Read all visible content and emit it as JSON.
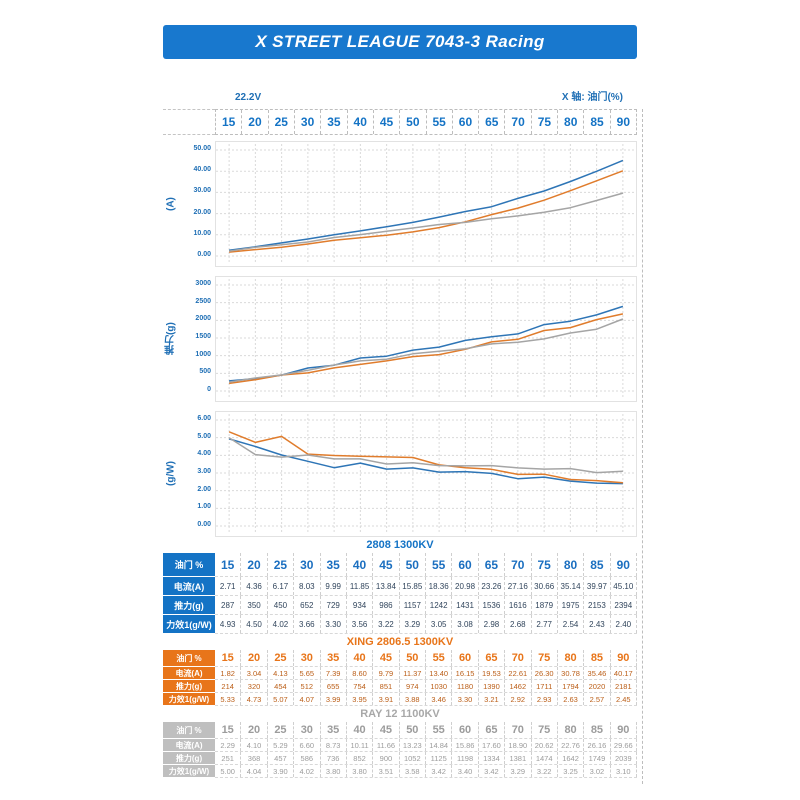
{
  "title": "X STREET LEAGUE 7043-3 Racing",
  "banner_color": "#1878ce",
  "meta": {
    "voltage": "22.2V",
    "x_axis_label": "X 轴: 油门(%)"
  },
  "throttle_header": {
    "values": [
      "15",
      "20",
      "25",
      "30",
      "35",
      "40",
      "45",
      "50",
      "55",
      "60",
      "65",
      "70",
      "75",
      "80",
      "85",
      "90"
    ]
  },
  "chart_data": [
    {
      "type": "line",
      "title": "",
      "xlabel": "油门(%)",
      "ylabel": "(A)",
      "x": [
        15,
        20,
        25,
        30,
        35,
        40,
        45,
        50,
        55,
        60,
        65,
        70,
        75,
        80,
        85,
        90
      ],
      "ylim": [
        0,
        50
      ],
      "yticks": [
        0,
        10,
        20,
        30,
        40,
        50
      ],
      "ytick_labels": [
        "0.00",
        "10.00",
        "20.00",
        "30.00",
        "40.00",
        "50.00"
      ],
      "grid": "dashed",
      "legend": "none",
      "series": [
        {
          "name": "2808 1300KV",
          "color": "#2e75b6",
          "values": [
            2.71,
            4.36,
            6.17,
            8.03,
            9.99,
            11.85,
            13.84,
            15.85,
            18.36,
            20.98,
            23.26,
            27.16,
            30.66,
            35.14,
            39.97,
            45.1
          ]
        },
        {
          "name": "XING 2806.5 1300KV",
          "color": "#e07c2c",
          "values": [
            1.82,
            3.04,
            4.13,
            5.65,
            7.39,
            8.6,
            9.79,
            11.37,
            13.4,
            16.15,
            19.53,
            22.61,
            26.3,
            30.78,
            35.46,
            40.17
          ]
        },
        {
          "name": "RAY 12 1100KV",
          "color": "#a5a5a5",
          "values": [
            2.29,
            4.1,
            5.29,
            6.6,
            8.73,
            10.11,
            11.66,
            13.23,
            14.84,
            15.86,
            17.6,
            18.9,
            20.62,
            22.76,
            26.16,
            29.66
          ]
        }
      ]
    },
    {
      "type": "line",
      "title": "",
      "xlabel": "油门(%)",
      "ylabel": "推力(g)",
      "x": [
        15,
        20,
        25,
        30,
        35,
        40,
        45,
        50,
        55,
        60,
        65,
        70,
        75,
        80,
        85,
        90
      ],
      "ylim": [
        0,
        3000
      ],
      "yticks": [
        0,
        500,
        1000,
        1500,
        2000,
        2500,
        3000
      ],
      "ytick_labels": [
        "0",
        "500",
        "1000",
        "1500",
        "2000",
        "2500",
        "3000"
      ],
      "grid": "dashed",
      "legend": "none",
      "series": [
        {
          "name": "2808 1300KV",
          "color": "#2e75b6",
          "values": [
            287,
            350,
            450,
            652,
            729,
            934,
            986,
            1157,
            1242,
            1431,
            1536,
            1616,
            1879,
            1975,
            2153,
            2394
          ]
        },
        {
          "name": "XING 2806.5 1300KV",
          "color": "#e07c2c",
          "values": [
            214,
            320,
            454,
            512,
            655,
            754,
            851,
            974,
            1030,
            1180,
            1390,
            1462,
            1711,
            1794,
            2020,
            2181
          ]
        },
        {
          "name": "RAY 12 1100KV",
          "color": "#a5a5a5",
          "values": [
            251,
            368,
            457,
            586,
            736,
            852,
            900,
            1052,
            1125,
            1198,
            1334,
            1381,
            1474,
            1642,
            1749,
            2039
          ]
        }
      ]
    },
    {
      "type": "line",
      "title": "",
      "xlabel": "油门(%)",
      "ylabel": "(g/W)",
      "x": [
        15,
        20,
        25,
        30,
        35,
        40,
        45,
        50,
        55,
        60,
        65,
        70,
        75,
        80,
        85,
        90
      ],
      "ylim": [
        0,
        6
      ],
      "yticks": [
        0,
        1,
        2,
        3,
        4,
        5,
        6
      ],
      "ytick_labels": [
        "0.00",
        "1.00",
        "2.00",
        "3.00",
        "4.00",
        "5.00",
        "6.00"
      ],
      "grid": "dashed",
      "legend": "none",
      "series": [
        {
          "name": "2808 1300KV",
          "color": "#2e75b6",
          "values": [
            4.93,
            4.5,
            4.02,
            3.66,
            3.3,
            3.56,
            3.22,
            3.29,
            3.05,
            3.08,
            2.98,
            2.68,
            2.77,
            2.54,
            2.43,
            2.4
          ]
        },
        {
          "name": "XING 2806.5 1300KV",
          "color": "#e07c2c",
          "values": [
            5.33,
            4.73,
            5.07,
            4.07,
            3.99,
            3.95,
            3.91,
            3.88,
            3.46,
            3.3,
            3.21,
            2.92,
            2.93,
            2.63,
            2.57,
            2.45
          ]
        },
        {
          "name": "RAY 12 1100KV",
          "color": "#a5a5a5",
          "values": [
            5.0,
            4.04,
            3.9,
            4.02,
            3.8,
            3.8,
            3.51,
            3.58,
            3.42,
            3.4,
            3.42,
            3.29,
            3.22,
            3.25,
            3.02,
            3.1
          ]
        }
      ]
    }
  ],
  "tables": [
    {
      "title": "2808 1300KV",
      "accent": "#1473c5",
      "title_color": "#1473c5",
      "throttle_color": "#1b6fc0",
      "value_color": "#31455c",
      "row_labels": [
        "油门 %",
        "电流(A)",
        "推力(g)",
        "力效1(g/W)"
      ],
      "rows": [
        [
          "15",
          "20",
          "25",
          "30",
          "35",
          "40",
          "45",
          "50",
          "55",
          "60",
          "65",
          "70",
          "75",
          "80",
          "85",
          "90"
        ],
        [
          "2.71",
          "4.36",
          "6.17",
          "8.03",
          "9.99",
          "11.85",
          "13.84",
          "15.85",
          "18.36",
          "20.98",
          "23.26",
          "27.16",
          "30.66",
          "35.14",
          "39.97",
          "45.10"
        ],
        [
          "287",
          "350",
          "450",
          "652",
          "729",
          "934",
          "986",
          "1157",
          "1242",
          "1431",
          "1536",
          "1616",
          "1879",
          "1975",
          "2153",
          "2394"
        ],
        [
          "4.93",
          "4.50",
          "4.02",
          "3.66",
          "3.30",
          "3.56",
          "3.22",
          "3.29",
          "3.05",
          "3.08",
          "2.98",
          "2.68",
          "2.77",
          "2.54",
          "2.43",
          "2.40"
        ]
      ]
    },
    {
      "title": "XING 2806.5 1300KV",
      "accent": "#e8751a",
      "title_color": "#e8751a",
      "throttle_color": "#e8751a",
      "value_color": "#bb5e17",
      "row_labels": [
        "油门 %",
        "电流(A)",
        "推力(g)",
        "力效1(g/W)"
      ],
      "rows": [
        [
          "15",
          "20",
          "25",
          "30",
          "35",
          "40",
          "45",
          "50",
          "55",
          "60",
          "65",
          "70",
          "75",
          "80",
          "85",
          "90"
        ],
        [
          "1.82",
          "3.04",
          "4.13",
          "5.65",
          "7.39",
          "8.60",
          "9.79",
          "11.37",
          "13.40",
          "16.15",
          "19.53",
          "22.61",
          "26.30",
          "30.78",
          "35.46",
          "40.17"
        ],
        [
          "214",
          "320",
          "454",
          "512",
          "655",
          "754",
          "851",
          "974",
          "1030",
          "1180",
          "1390",
          "1462",
          "1711",
          "1794",
          "2020",
          "2181"
        ],
        [
          "5.33",
          "4.73",
          "5.07",
          "4.07",
          "3.99",
          "3.95",
          "3.91",
          "3.88",
          "3.46",
          "3.30",
          "3.21",
          "2.92",
          "2.93",
          "2.63",
          "2.57",
          "2.45"
        ]
      ]
    },
    {
      "title": "RAY 12 1100KV",
      "accent": "#bfbfbf",
      "title_color": "#a8a8a8",
      "throttle_color": "#9c9c9c",
      "value_color": "#9c9c9c",
      "row_labels": [
        "油门 %",
        "电流(A)",
        "推力(g)",
        "力效1(g/W)"
      ],
      "rows": [
        [
          "15",
          "20",
          "25",
          "30",
          "35",
          "40",
          "45",
          "50",
          "55",
          "60",
          "65",
          "70",
          "75",
          "80",
          "85",
          "90"
        ],
        [
          "2.29",
          "4.10",
          "5.29",
          "6.60",
          "8.73",
          "10.11",
          "11.66",
          "13.23",
          "14.84",
          "15.86",
          "17.60",
          "18.90",
          "20.62",
          "22.76",
          "26.16",
          "29.66"
        ],
        [
          "251",
          "368",
          "457",
          "586",
          "736",
          "852",
          "900",
          "1052",
          "1125",
          "1198",
          "1334",
          "1381",
          "1474",
          "1642",
          "1749",
          "2039"
        ],
        [
          "5.00",
          "4.04",
          "3.90",
          "4.02",
          "3.80",
          "3.80",
          "3.51",
          "3.58",
          "3.42",
          "3.40",
          "3.42",
          "3.29",
          "3.22",
          "3.25",
          "3.02",
          "3.10"
        ]
      ]
    }
  ]
}
